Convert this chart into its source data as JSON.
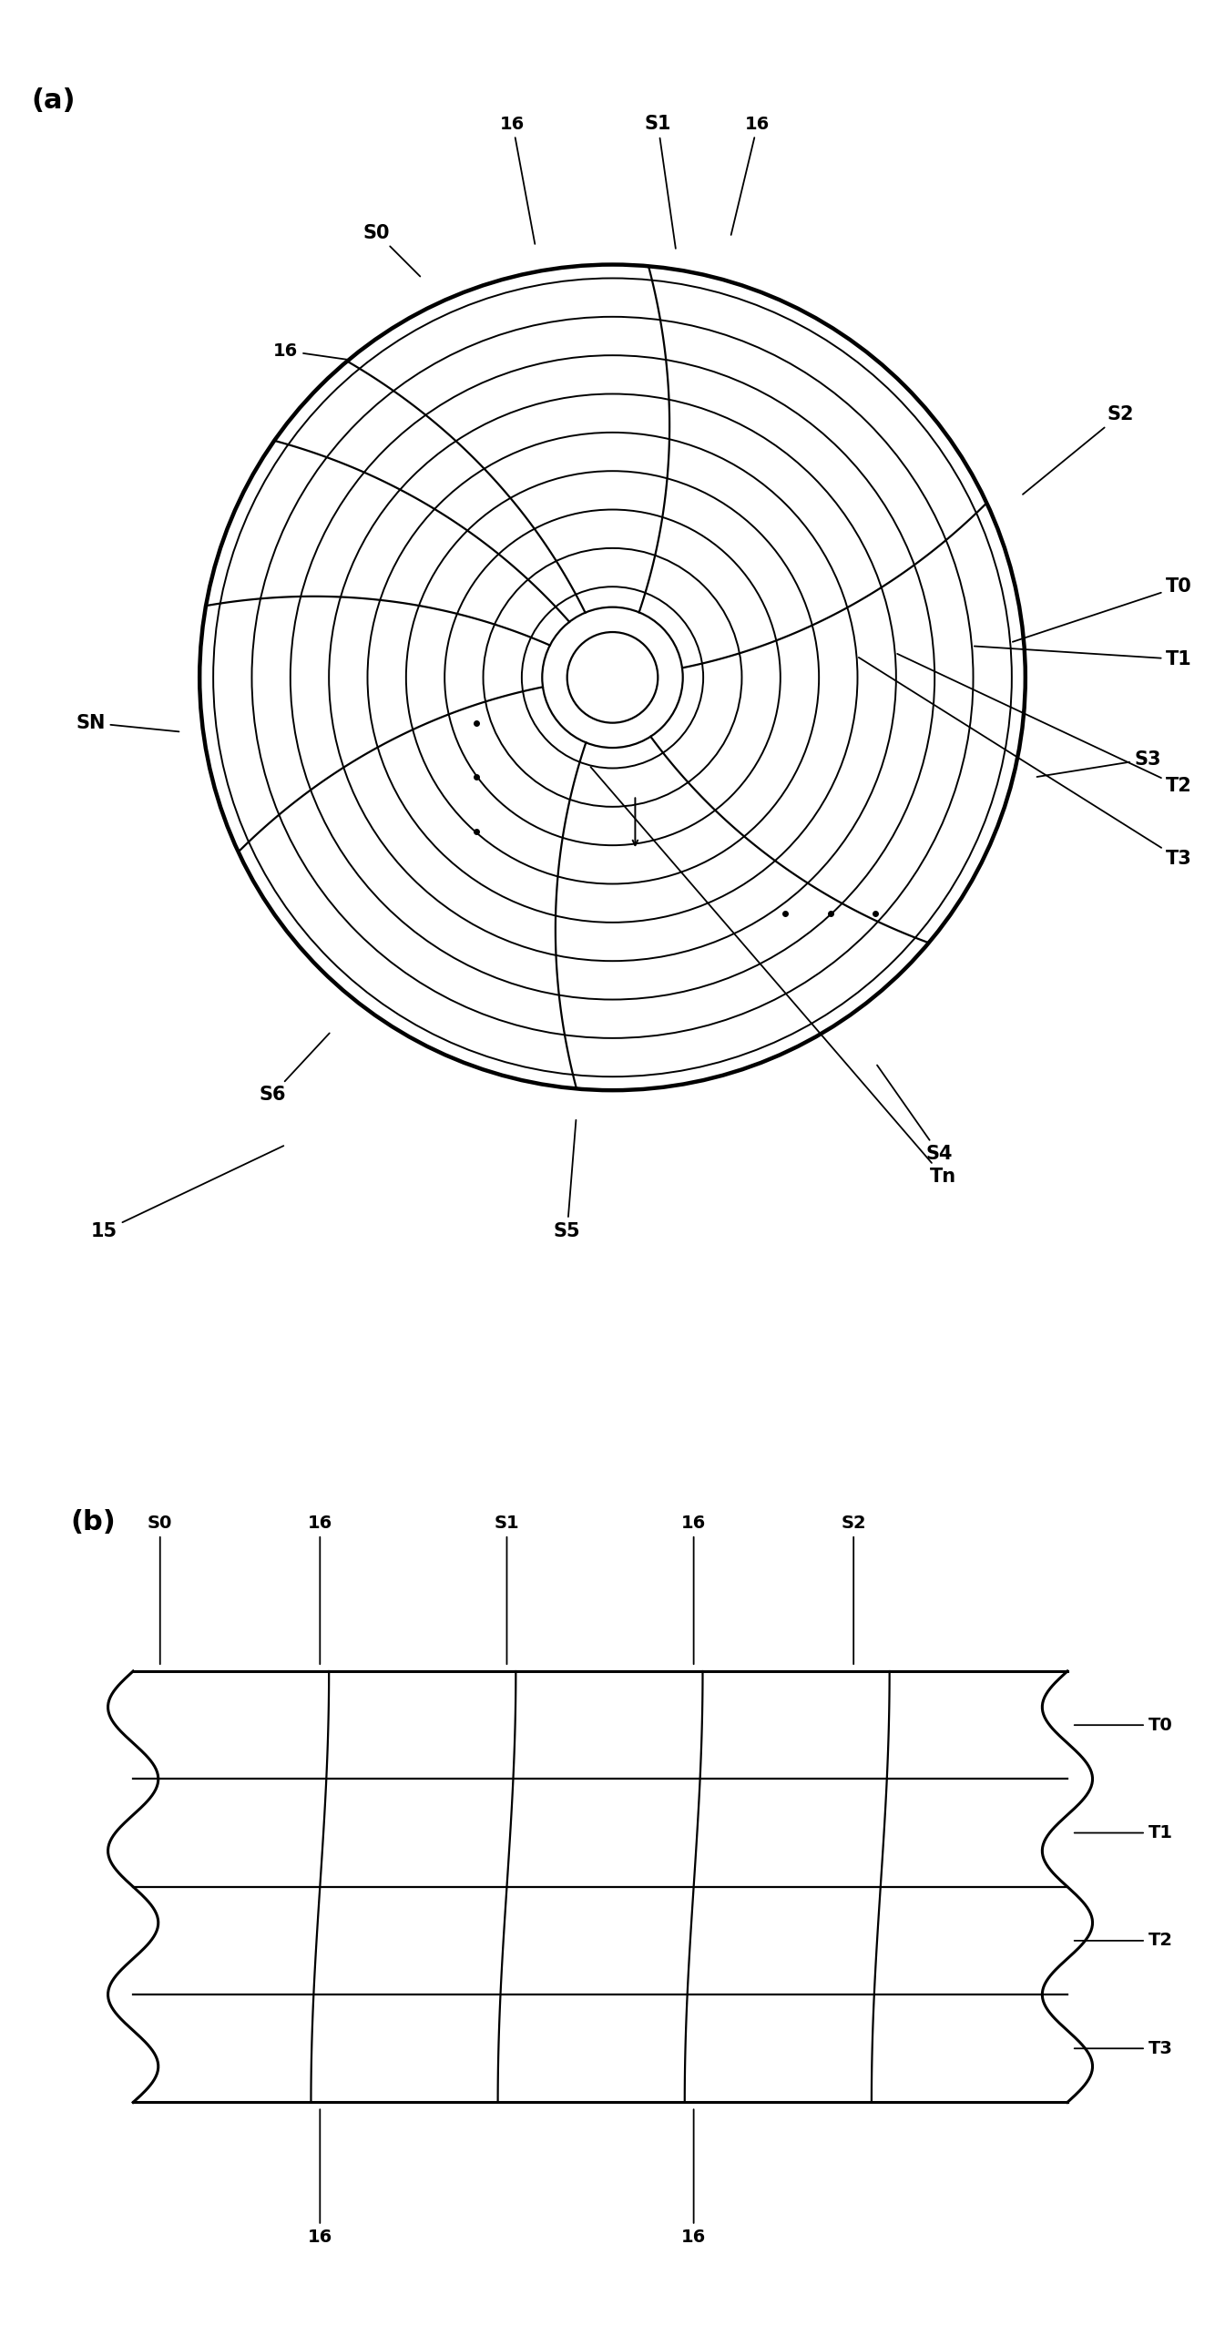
{
  "fig_width": 13.45,
  "fig_height": 25.65,
  "bg_color": "#ffffff",
  "line_color": "#000000",
  "panel_a_label": "(a)",
  "panel_b_label": "(b)",
  "track_labels": [
    "T0",
    "T1",
    "T2",
    "T3",
    "Tn"
  ],
  "sector_labels_a": [
    "S0",
    "S1",
    "S2",
    "S3",
    "S4",
    "S5",
    "S6",
    "SN"
  ],
  "sector_labels_b": [
    "S0",
    "16",
    "S1",
    "16",
    "S2"
  ],
  "track_labels_b": [
    "T0",
    "T1",
    "T2",
    "T3"
  ],
  "ref_label": "16",
  "disk_label": "15",
  "n_tracks": 9,
  "n_sectors": 7,
  "r_outer": 0.88,
  "r_inner_track": 0.2,
  "r_hole_outer": 0.155,
  "r_hole_inner": 0.1
}
